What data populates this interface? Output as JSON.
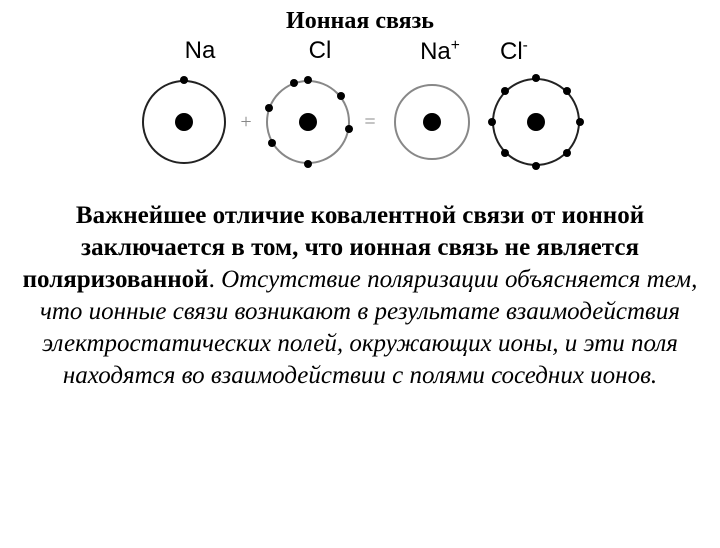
{
  "title": "Ионная связь",
  "labels": {
    "na": "Na",
    "cl": "Cl",
    "naPlus": "Na",
    "naPlusCharge": "+",
    "clMinus": "Cl",
    "clMinusCharge": "-"
  },
  "operators": {
    "plus": "+",
    "equals": "="
  },
  "paragraph": {
    "bold": "Важнейшее отличие ковалентной связи от ионной  заключается в том, что ионная связь не является поляризованной",
    "dot": ". ",
    "italic": "Отсутствие поляризации объясняется тем, что ионные связи возникают в результате взаимодействия электростатических полей, окружающих ионы, и эти поля находятся во взаимодействии с полями соседних ионов."
  },
  "diagram": {
    "colors": {
      "shell_dark": "#222222",
      "shell_gray": "#888888",
      "nucleus": "#000000",
      "electron": "#000000",
      "operator": "#888888"
    },
    "atoms": [
      {
        "name": "na-atom",
        "shell_radius": 42,
        "shell_color": "#222222",
        "nucleus_radius": 9,
        "electrons": [
          {
            "angle": -90,
            "r": 42
          }
        ]
      },
      {
        "name": "cl-atom",
        "shell_radius": 42,
        "shell_color": "#888888",
        "nucleus_radius": 9,
        "electrons": [
          {
            "angle": -90,
            "r": 42
          },
          {
            "angle": -38,
            "r": 42
          },
          {
            "angle": 10,
            "r": 42
          },
          {
            "angle": 90,
            "r": 42
          },
          {
            "angle": 150,
            "r": 42
          },
          {
            "angle": 200,
            "r": 42
          },
          {
            "angle": 250,
            "r": 42
          }
        ]
      },
      {
        "name": "na-cation",
        "shell_radius": 38,
        "shell_color": "#888888",
        "nucleus_radius": 9,
        "electrons": []
      },
      {
        "name": "cl-anion",
        "shell_radius": 44,
        "shell_color": "#222222",
        "nucleus_radius": 9,
        "electrons": [
          {
            "angle": -90,
            "r": 44
          },
          {
            "angle": -45,
            "r": 44
          },
          {
            "angle": 0,
            "r": 44
          },
          {
            "angle": 45,
            "r": 44
          },
          {
            "angle": 90,
            "r": 44
          },
          {
            "angle": 135,
            "r": 44
          },
          {
            "angle": 180,
            "r": 44
          },
          {
            "angle": 225,
            "r": 44
          }
        ]
      }
    ],
    "electron_radius": 4
  }
}
